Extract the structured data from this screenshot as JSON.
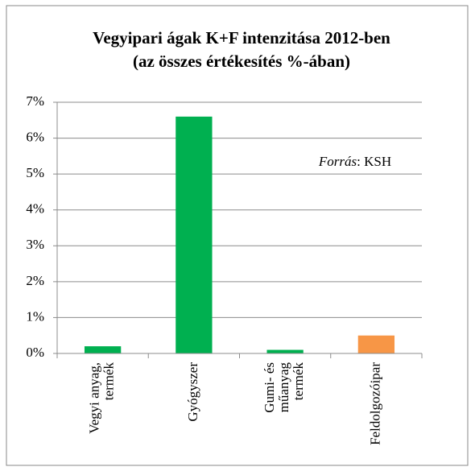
{
  "chart_data": {
    "type": "bar",
    "title": [
      "Vegyipari ágak K+F intenzitása 2012-ben",
      "(az összes értékesítés %-ában)"
    ],
    "annotation": [
      "Forrás",
      ": KSH"
    ],
    "categories": [
      [
        "Vegyi anyag,",
        "termék"
      ],
      [
        "Gyógyszer"
      ],
      [
        "Gumi- és",
        "műanyag",
        "termék"
      ],
      [
        "Feldolgozóipar"
      ]
    ],
    "values": [
      0.2,
      6.6,
      0.1,
      0.5
    ],
    "colors": [
      "#00b050",
      "#00b050",
      "#00b050",
      "#f79646"
    ],
    "ylim": [
      0,
      7
    ],
    "yticks": [
      {
        "value": 0,
        "label": "0%"
      },
      {
        "value": 1,
        "label": "1%"
      },
      {
        "value": 2,
        "label": "2%"
      },
      {
        "value": 3,
        "label": "3%"
      },
      {
        "value": 4,
        "label": "4%"
      },
      {
        "value": 5,
        "label": "5%"
      },
      {
        "value": 6,
        "label": "6%"
      },
      {
        "value": 7,
        "label": "7%"
      }
    ],
    "grid": true
  }
}
